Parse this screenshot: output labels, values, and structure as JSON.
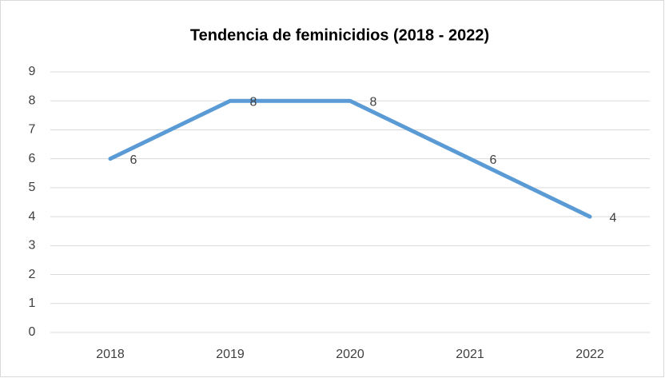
{
  "chart_data": {
    "type": "line",
    "title": "Tendencia de feminicidios (2018 - 2022)",
    "categories": [
      "2018",
      "2019",
      "2020",
      "2021",
      "2022"
    ],
    "values": [
      6,
      8,
      8,
      6,
      4
    ],
    "color": "#5b9bd5",
    "ylim": [
      0,
      9
    ],
    "yticks": [
      0,
      1,
      2,
      3,
      4,
      5,
      6,
      7,
      8,
      9
    ],
    "grid": true,
    "data_labels": true
  }
}
